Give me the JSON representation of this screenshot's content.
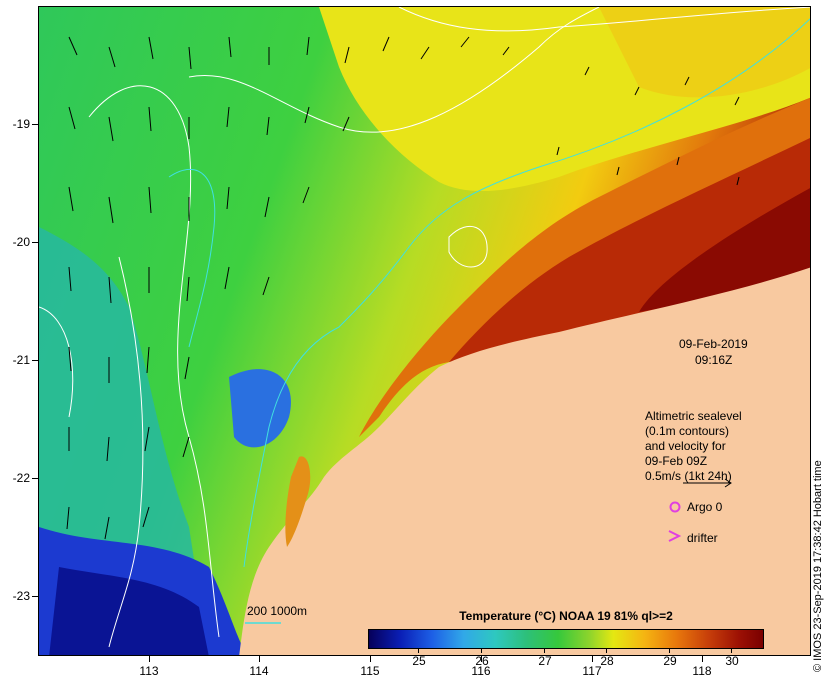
{
  "map": {
    "date_label": "09-Feb-2019",
    "time_label": "09:16Z",
    "y_ticks": [
      "-19",
      "-20",
      "-21",
      "-22",
      "-23"
    ],
    "x_ticks": [
      "113",
      "114",
      "115",
      "116",
      "117",
      "118"
    ],
    "legend": {
      "line1": "Altimetric sealevel",
      "line2": "(0.1m contours)",
      "line3": "and velocity for",
      "line4": "09-Feb 09Z",
      "line5": "0.5m/s (1kt 24h)",
      "argo_label": "Argo 0",
      "drifter_label": "drifter",
      "isobath_label": "200  1000m"
    },
    "colorbar": {
      "title": "Temperature (°C) NOAA 19 81% ql>=2",
      "labels": [
        "25",
        "26",
        "27",
        "28",
        "29",
        "30"
      ]
    },
    "credit": "© IMOS 23-Sep-2019 17:38:42 Hobart time",
    "colors": {
      "land": "#f8c9a0",
      "cold": "#0a1fb6",
      "warm": "#9c1004",
      "argo": "#e040e0",
      "isobath": "#40e0e0"
    }
  }
}
